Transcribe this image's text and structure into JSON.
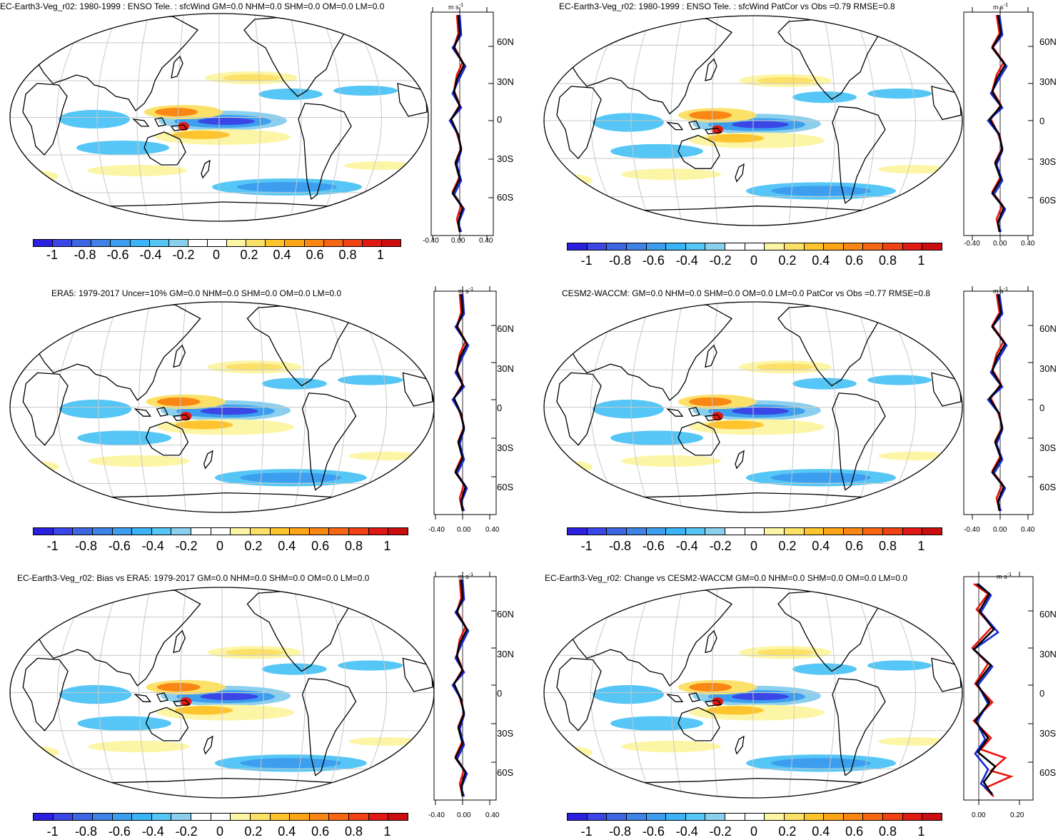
{
  "colorbar": {
    "colors": [
      "#2b1fe0",
      "#3a46e6",
      "#3f66e2",
      "#3f83e6",
      "#3d9ef0",
      "#3bb4f7",
      "#55c6f5",
      "#8ad0ee",
      "#ffffff",
      "#ffffff",
      "#fdf5a6",
      "#fce168",
      "#fdc42e",
      "#fca516",
      "#fa8613",
      "#f76613",
      "#f04214",
      "#e11914",
      "#cc0d0f"
    ],
    "labels": [
      "-1",
      "-0.8",
      "-0.6",
      "-0.4",
      "-0.2",
      "0",
      "0.2",
      "0.4",
      "0.6",
      "0.8",
      "1"
    ]
  },
  "profile": {
    "unit": "m s",
    "unit_sup": "-1",
    "lat_labels": [
      "60N",
      "30N",
      "0",
      "30S",
      "60S"
    ],
    "x_labels_std": [
      "-0.40",
      "0.00",
      "0.40"
    ],
    "x_labels_change": [
      "0.00",
      "0.20"
    ],
    "line_colors": {
      "model": "#e8130f",
      "obs": "#1527d6",
      "mean": "#000000"
    }
  },
  "panels": [
    {
      "id": "model",
      "title": "EC-Earth3-Veg_r02: 1980-1999 : ENSO Tele. : sfcWind GM=0.0 NHM=0.0 SHM=0.0 OM=0.0 LM=0.0"
    },
    {
      "id": "model-vs-obs",
      "title": "EC-Earth3-Veg_r02: 1980-1999 : ENSO Tele. : sfcWind PatCor vs Obs =0.79 RMSE=0.8"
    },
    {
      "id": "obs",
      "title": "ERA5: 1979-2017 Uncer=10% GM=0.0 NHM=0.0 SHM=0.0 OM=0.0 LM=0.0"
    },
    {
      "id": "reference",
      "title": "CESM2-WACCM: GM=0.0 NHM=0.0 SHM=0.0 OM=0.0 LM=0.0 PatCor vs Obs =0.77 RMSE=0.8"
    },
    {
      "id": "bias",
      "title": "EC-Earth3-Veg_r02: Bias vs ERA5: 1979-2017 GM=0.0 NHM=0.0 SHM=0.0 OM=0.0 LM=0.0"
    },
    {
      "id": "change",
      "title": "EC-Earth3-Veg_r02: Change vs CESM2-WACCM GM=0.0 NHM=0.0 SHM=0.0 OM=0.0 LM=0.0"
    }
  ]
}
